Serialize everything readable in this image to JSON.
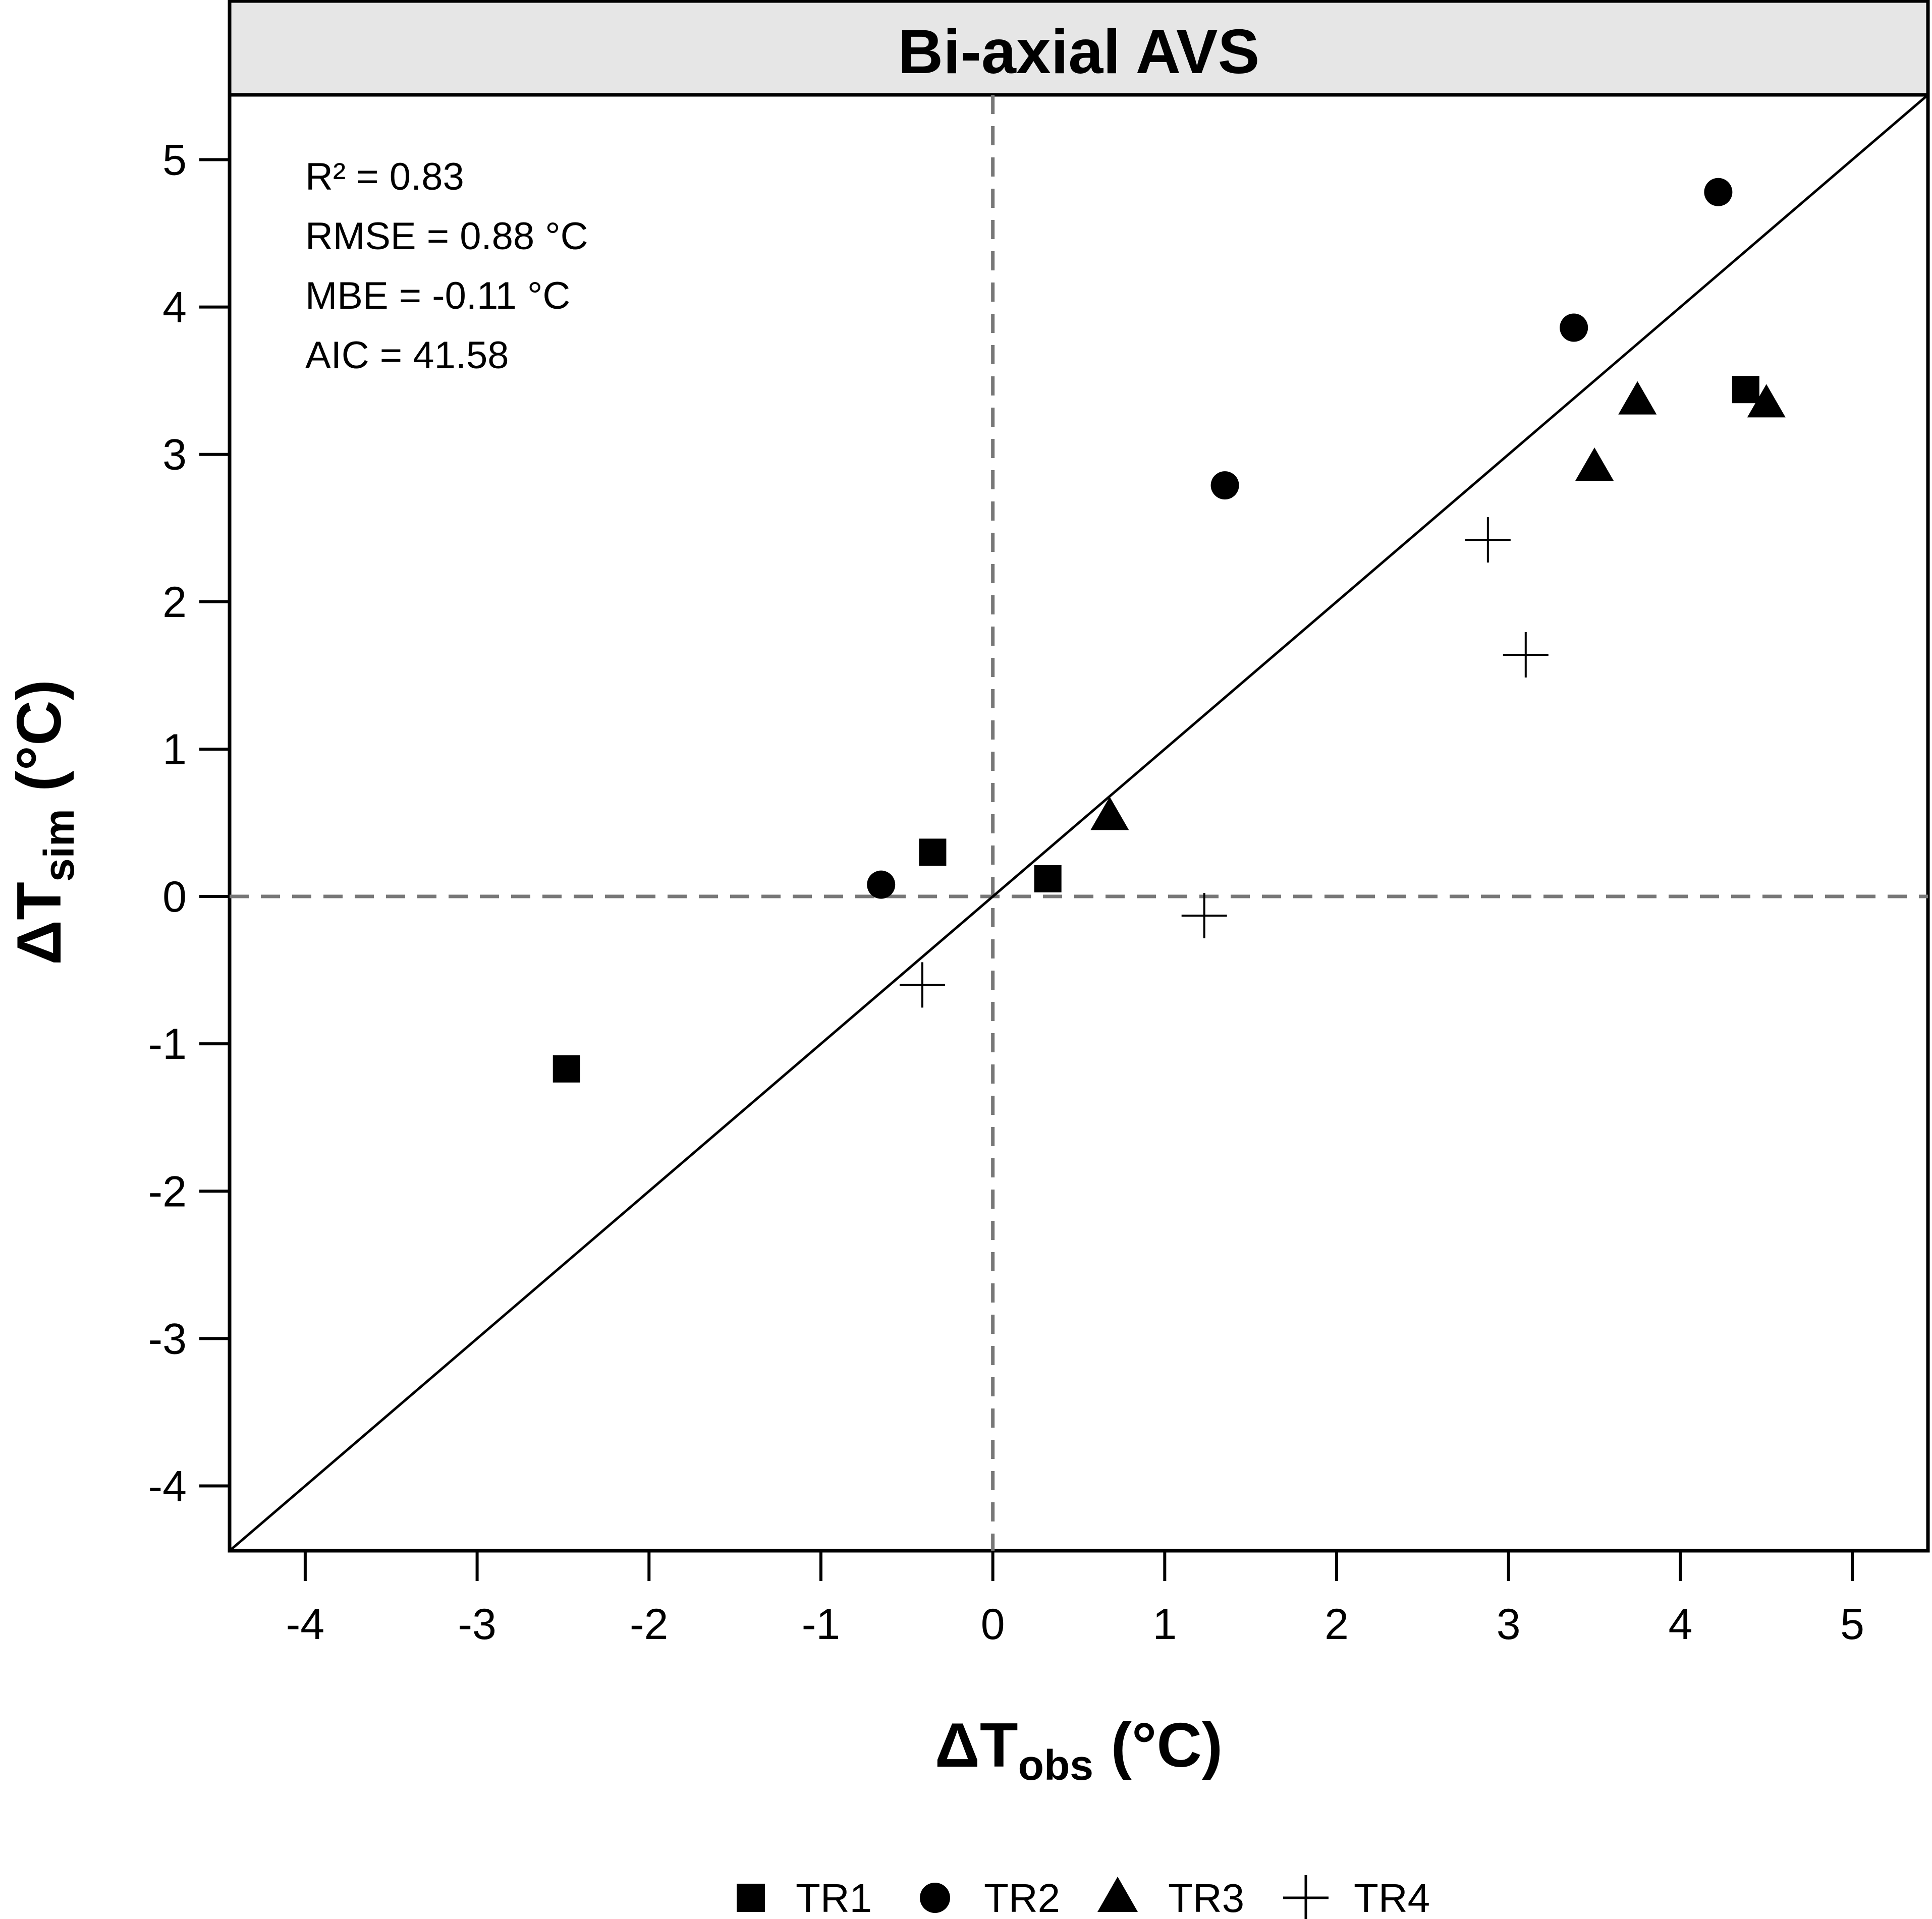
{
  "chart_data": {
    "type": "scatter",
    "title": "Bi-axial AVS",
    "xlabel": {
      "prefix": "ΔT",
      "sub": "obs",
      "suffix": " (°C)"
    },
    "ylabel": {
      "prefix": "ΔT",
      "sub": "sim",
      "suffix": " (°C)"
    },
    "xlim": [
      -4.44,
      5.44
    ],
    "ylim": [
      -4.44,
      5.44
    ],
    "xticks": [
      "-4",
      "-3",
      "-2",
      "-1",
      "0",
      "1",
      "2",
      "3",
      "4",
      "5"
    ],
    "yticks": [
      "-4",
      "-3",
      "-2",
      "-1",
      "0",
      "1",
      "2",
      "3",
      "4",
      "5"
    ],
    "reference_line": "1:1",
    "zero_lines": true,
    "stats": [
      "R² = 0.83",
      "RMSE = 0.88 °C",
      "MBE = -0.11 °C",
      "AIC = 41.58"
    ],
    "series": [
      {
        "name": "TR1",
        "marker": "square",
        "points": [
          [
            -2.48,
            -1.17
          ],
          [
            -0.35,
            0.3
          ],
          [
            0.32,
            0.12
          ],
          [
            4.38,
            3.44
          ]
        ]
      },
      {
        "name": "TR2",
        "marker": "circle",
        "points": [
          [
            -0.65,
            0.08
          ],
          [
            1.35,
            2.79
          ],
          [
            3.38,
            3.86
          ],
          [
            4.22,
            4.78
          ]
        ]
      },
      {
        "name": "TR3",
        "marker": "triangle",
        "points": [
          [
            0.68,
            0.54
          ],
          [
            3.5,
            2.91
          ],
          [
            3.75,
            3.36
          ],
          [
            4.5,
            3.34
          ]
        ]
      },
      {
        "name": "TR4",
        "marker": "plus",
        "points": [
          [
            -0.41,
            -0.6
          ],
          [
            1.23,
            -0.13
          ],
          [
            2.88,
            2.42
          ],
          [
            3.1,
            1.64
          ]
        ]
      }
    ],
    "legend_position": "bottom"
  }
}
